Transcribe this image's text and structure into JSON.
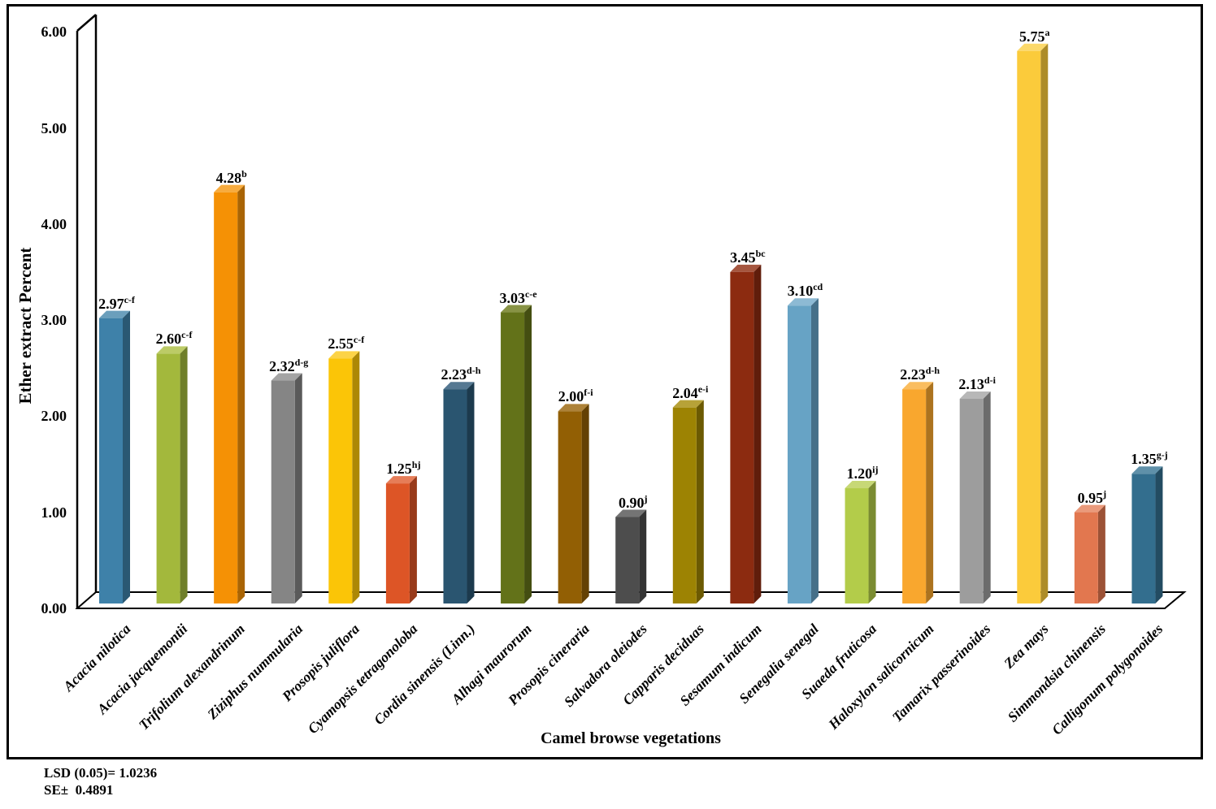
{
  "chart_data": {
    "type": "bar",
    "projection": "3d",
    "title": "",
    "xlabel": "Camel browse vegetations",
    "ylabel": "Ether extract Percent",
    "ylim": [
      0,
      6
    ],
    "ytick_labels": [
      "0.00",
      "1.00",
      "2.00",
      "3.00",
      "4.00",
      "5.00",
      "6.00"
    ],
    "grid": false,
    "legend": false,
    "categories": [
      "Acacia nilotica",
      "Acacia jacquemontii",
      "Trifolium alexandrinum",
      "Ziziphus nummularia",
      "Prosopis juliflora",
      "Cyamopsis tetragonoloba",
      "Cordia sinensis (Linn.)",
      "Alhagi maurorum",
      "Prosopis cineraria",
      "Salvadora oleiodes",
      "Capparis deciduas",
      "Sesamum indicum",
      "Senegalia senegal",
      "Suaeda fruticosa",
      "Haloxylon salicornicum",
      "Tamarix passerinoides",
      "Zea mays",
      "Simmondsia chinensis",
      "Calligonum polygonoides"
    ],
    "values": [
      2.97,
      2.6,
      4.28,
      2.32,
      2.55,
      1.25,
      2.23,
      3.03,
      2.0,
      0.9,
      2.04,
      3.45,
      3.1,
      1.2,
      2.23,
      2.13,
      5.75,
      0.95,
      1.35
    ],
    "value_labels": [
      "2.97",
      "2.60",
      "4.28",
      "2.32",
      "2.55",
      "1.25",
      "2.23",
      "3.03",
      "2.00",
      "0.90",
      "2.04",
      "3.45",
      "3.10",
      "1.20",
      "2.23",
      "2.13",
      "5.75",
      "0.95",
      "1.35"
    ],
    "superscripts": [
      "c-f",
      "c-f",
      "b",
      "d-g",
      "c-f",
      "hj",
      "d-h",
      "c-e",
      "f-i",
      "j",
      "e-i",
      "bc",
      "cd",
      "ij",
      "d-h",
      "d-i",
      "a",
      "j",
      "g-j"
    ],
    "bar_colors": [
      {
        "front": "#3E81A9",
        "side": "#2A5873",
        "top": "#6B9FBC"
      },
      {
        "front": "#A3B83C",
        "side": "#6F7F29",
        "top": "#BCCB66"
      },
      {
        "front": "#F59105",
        "side": "#A96404",
        "top": "#F7AB3E"
      },
      {
        "front": "#858585",
        "side": "#5A5A5A",
        "top": "#A4A4A4"
      },
      {
        "front": "#FBC507",
        "side": "#AD8805",
        "top": "#FCD347"
      },
      {
        "front": "#DD5526",
        "side": "#983A1A",
        "top": "#E67D58"
      },
      {
        "front": "#2A5570",
        "side": "#1C3A4D",
        "top": "#557892"
      },
      {
        "front": "#637219",
        "side": "#444E11",
        "top": "#889345"
      },
      {
        "front": "#925F04",
        "side": "#644103",
        "top": "#AD8238"
      },
      {
        "front": "#4D4D4D",
        "side": "#343434",
        "top": "#747474"
      },
      {
        "front": "#9D8303",
        "side": "#6C5A02",
        "top": "#B7A238"
      },
      {
        "front": "#8C2B10",
        "side": "#601D0B",
        "top": "#A5563F"
      },
      {
        "front": "#67A3C5",
        "side": "#467089",
        "top": "#8DBAD4"
      },
      {
        "front": "#B3CC4A",
        "side": "#7B8C32",
        "top": "#C7D876"
      },
      {
        "front": "#F9A72E",
        "side": "#AC731F",
        "top": "#FABD5F"
      },
      {
        "front": "#9D9D9D",
        "side": "#6C6C6C",
        "top": "#B7B7B7"
      },
      {
        "front": "#FBCB3B",
        "side": "#AD8C28",
        "top": "#FCD96A"
      },
      {
        "front": "#E2774F",
        "side": "#9C5236",
        "top": "#EA9A7B"
      },
      {
        "front": "#336E8E",
        "side": "#234C62",
        "top": "#5F90A9"
      }
    ],
    "axis_color": "#000000"
  },
  "footnotes": {
    "lsd_label": "LSD (0.05)= 1.0236",
    "se_label": "SE±  0.4891"
  }
}
